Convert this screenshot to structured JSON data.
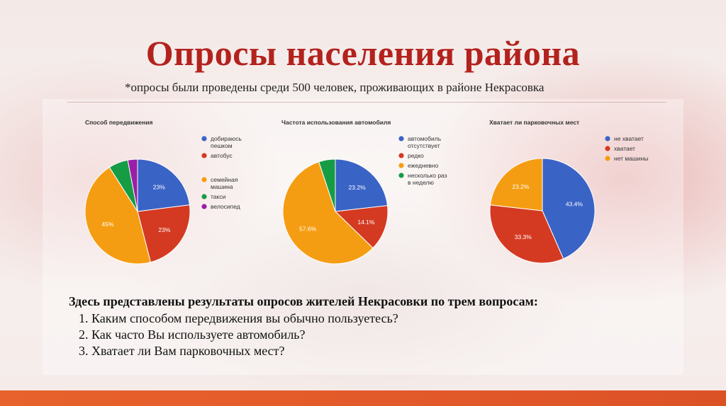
{
  "slide": {
    "title": "Опросы населения района",
    "subtitle": "*опросы были проведены среди 500 человек, проживающих в районе Некрасовка",
    "description": {
      "heading": "Здесь представлены результаты опросов жителей Некрасовки по трем вопросам:",
      "items": [
        "Каким способом передвижения вы обычно пользуетесь?",
        "Как часто Вы используете автомобиль?",
        "Хватает ли Вам парковочных мест?"
      ]
    }
  },
  "colors": {
    "title": "#b3221d",
    "blue": "#3a63c6",
    "red": "#d43a22",
    "orange": "#f59d12",
    "green": "#179c46",
    "purple": "#9a1fa6",
    "bottom_bar": "#e35a2a"
  },
  "chart_data": [
    {
      "type": "pie",
      "title": "Способ передвижения",
      "slices": [
        {
          "legend": [
            "добираюсь",
            "пешком"
          ],
          "value": 23,
          "label": "23%",
          "color": "#3a63c6"
        },
        {
          "legend": [
            "автобус"
          ],
          "value": 23,
          "label": "23%",
          "color": "#d43a22"
        },
        {
          "legend": [
            "семейная",
            "машина"
          ],
          "value": 45,
          "label": "45%",
          "color": "#f59d12"
        },
        {
          "legend": [
            "такси"
          ],
          "value": 6,
          "label": "",
          "color": "#179c46"
        },
        {
          "legend": [
            "велосипед"
          ],
          "value": 3,
          "label": "",
          "color": "#9a1fa6"
        }
      ]
    },
    {
      "type": "pie",
      "title": "Частота использования автомобиля",
      "slices": [
        {
          "legend": [
            "автомобиль",
            "отсутствует"
          ],
          "value": 23.2,
          "label": "23.2%",
          "color": "#3a63c6"
        },
        {
          "legend": [
            "редко"
          ],
          "value": 14.1,
          "label": "14.1%",
          "color": "#d43a22"
        },
        {
          "legend": [
            "ежедневно"
          ],
          "value": 57.6,
          "label": "57.6%",
          "color": "#f59d12"
        },
        {
          "legend": [
            "несколько раз",
            "в неделю"
          ],
          "value": 5.1,
          "label": "",
          "color": "#179c46"
        }
      ]
    },
    {
      "type": "pie",
      "title": "Хватает ли парковочных мест",
      "slices": [
        {
          "legend": [
            "не хватает"
          ],
          "value": 43.4,
          "label": "43.4%",
          "color": "#3a63c6"
        },
        {
          "legend": [
            "хватает"
          ],
          "value": 33.3,
          "label": "33.3%",
          "color": "#d43a22"
        },
        {
          "legend": [
            "нет машины"
          ],
          "value": 23.2,
          "label": "23.2%",
          "color": "#f59d12"
        }
      ]
    }
  ]
}
